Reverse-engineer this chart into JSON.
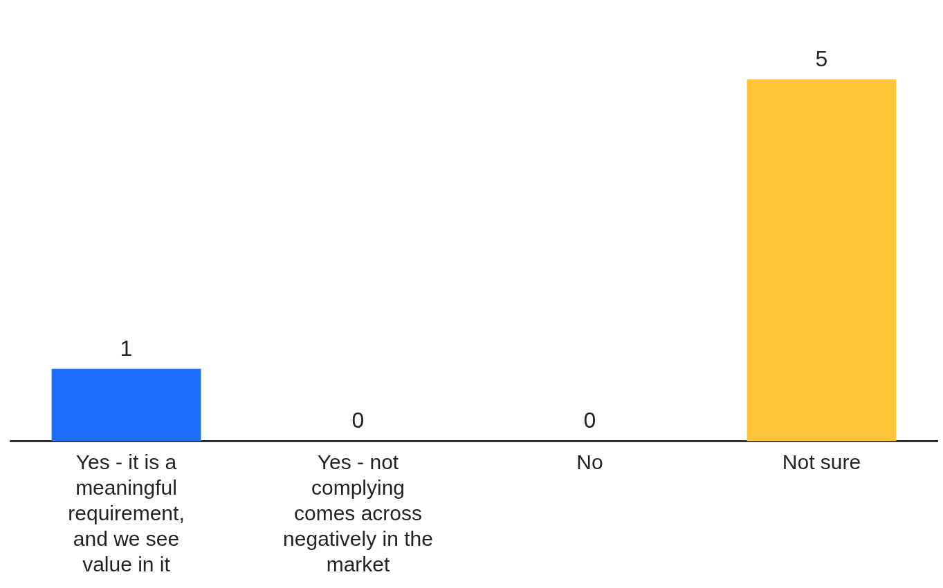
{
  "chart_data": {
    "type": "bar",
    "categories": [
      "Yes - it is a meaningful requirement, and we see value in it",
      "Yes - not complying comes across negatively in the market",
      "No",
      "Not sure"
    ],
    "values": [
      1,
      0,
      0,
      5
    ],
    "colors": [
      "#1a6dff",
      "#1a6dff",
      "#1a6dff",
      "#fec536"
    ],
    "data_labels": true,
    "grid": false,
    "legend": false
  }
}
